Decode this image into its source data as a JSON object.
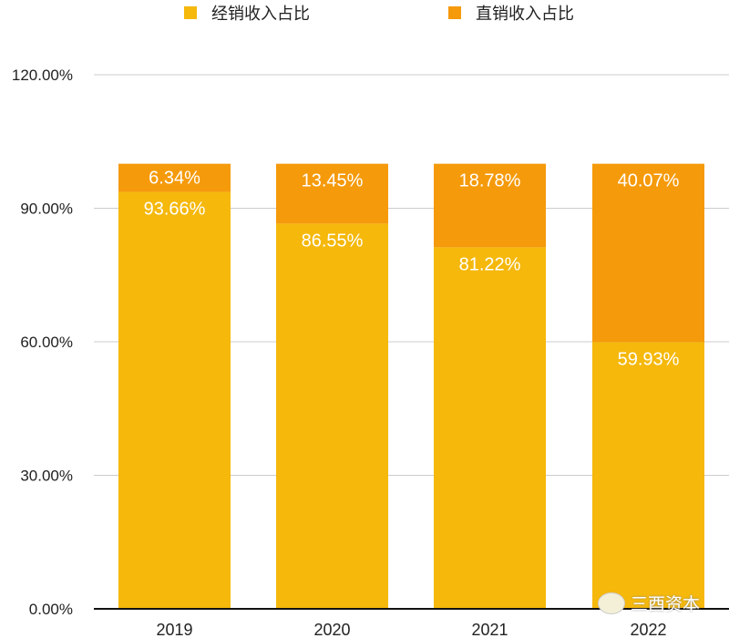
{
  "chart_data": {
    "type": "bar",
    "stacked": true,
    "categories": [
      "2019",
      "2020",
      "2021",
      "2022"
    ],
    "series": [
      {
        "name": "经销收入占比",
        "values": [
          93.66,
          86.55,
          81.22,
          59.93
        ],
        "labels": [
          "93.66%",
          "86.55%",
          "81.22%",
          "59.93%"
        ],
        "color": "#F5B80B"
      },
      {
        "name": "直销收入占比",
        "values": [
          6.34,
          13.45,
          18.78,
          40.07
        ],
        "labels": [
          "6.34%",
          "13.45%",
          "18.78%",
          "40.07%"
        ],
        "color": "#F59A0B"
      }
    ],
    "ylim": [
      0,
      120
    ],
    "yticks": [
      "0.00%",
      "30.00%",
      "60.00%",
      "90.00%",
      "120.00%"
    ],
    "ytick_values": [
      0,
      30,
      60,
      90,
      120
    ],
    "grid": true,
    "legend": "top"
  },
  "watermark": "三酉资本"
}
